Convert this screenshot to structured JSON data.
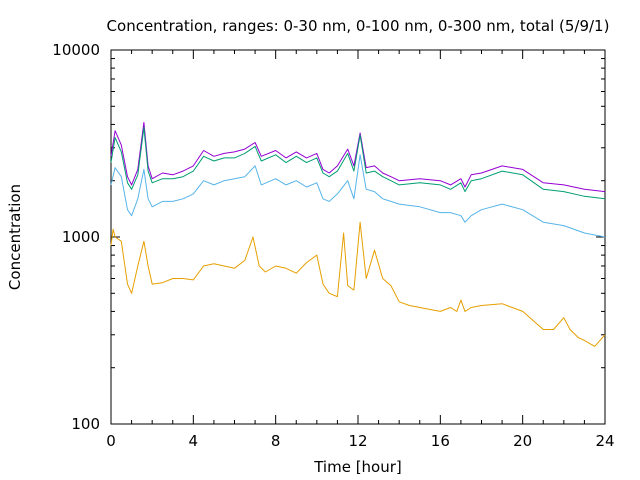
{
  "chart_data": {
    "type": "line",
    "title": "Concentration, ranges: 0-30 nm, 0-100 nm, 0-300 nm, total (5/9/1)",
    "xlabel": "Time [hour]",
    "ylabel": "Concentration",
    "y_scale": "log",
    "xlim": [
      0,
      24
    ],
    "ylim": [
      100,
      10000
    ],
    "x_ticks": [
      0,
      4,
      8,
      12,
      16,
      20,
      24
    ],
    "y_ticks": [
      100,
      1000,
      10000
    ],
    "grid": false,
    "legend": "none",
    "series": [
      {
        "color": "#9400d3",
        "x": [
          0,
          0.2,
          0.5,
          0.8,
          1.0,
          1.3,
          1.6,
          1.8,
          2.0,
          2.5,
          3.0,
          3.5,
          4.0,
          4.5,
          5.0,
          5.5,
          6.0,
          6.5,
          7.0,
          7.3,
          8.0,
          8.5,
          9.0,
          9.5,
          10.0,
          10.3,
          10.6,
          11.0,
          11.5,
          11.8,
          12.1,
          12.4,
          12.8,
          13.2,
          13.6,
          14.0,
          15.0,
          16.0,
          16.5,
          17.0,
          17.2,
          17.5,
          18.0,
          19.0,
          20.0,
          21.0,
          22.0,
          23.0,
          24.0
        ],
        "y": [
          2700,
          3700,
          3100,
          2100,
          1900,
          2300,
          4100,
          2400,
          2050,
          2200,
          2150,
          2250,
          2400,
          2900,
          2700,
          2800,
          2850,
          2950,
          3200,
          2700,
          2900,
          2650,
          2850,
          2650,
          2800,
          2300,
          2200,
          2400,
          2950,
          2400,
          3600,
          2350,
          2400,
          2200,
          2100,
          2000,
          2050,
          2000,
          1900,
          2050,
          1850,
          2150,
          2200,
          2400,
          2300,
          1950,
          1900,
          1800,
          1750
        ]
      },
      {
        "color": "#009e73",
        "x": [
          0,
          0.2,
          0.5,
          0.8,
          1.0,
          1.3,
          1.6,
          1.8,
          2.0,
          2.5,
          3.0,
          3.5,
          4.0,
          4.5,
          5.0,
          5.5,
          6.0,
          6.5,
          7.0,
          7.3,
          8.0,
          8.5,
          9.0,
          9.5,
          10.0,
          10.3,
          10.6,
          11.0,
          11.5,
          11.8,
          12.1,
          12.4,
          12.8,
          13.2,
          13.6,
          14.0,
          15.0,
          16.0,
          16.5,
          17.0,
          17.2,
          17.5,
          18.0,
          19.0,
          20.0,
          21.0,
          22.0,
          23.0,
          24.0
        ],
        "y": [
          2500,
          3400,
          2850,
          1950,
          1800,
          2150,
          3850,
          2250,
          1950,
          2050,
          2050,
          2100,
          2250,
          2700,
          2550,
          2650,
          2650,
          2800,
          3050,
          2550,
          2750,
          2500,
          2700,
          2500,
          2650,
          2200,
          2100,
          2250,
          2800,
          2250,
          3500,
          2200,
          2250,
          2100,
          2000,
          1900,
          1950,
          1900,
          1800,
          1950,
          1750,
          2000,
          2050,
          2250,
          2150,
          1800,
          1750,
          1650,
          1600
        ]
      },
      {
        "color": "#56b4e9",
        "x": [
          0,
          0.2,
          0.5,
          0.8,
          1.0,
          1.3,
          1.6,
          1.8,
          2.0,
          2.5,
          3.0,
          3.5,
          4.0,
          4.5,
          5.0,
          5.5,
          6.0,
          6.5,
          7.0,
          7.3,
          8.0,
          8.5,
          9.0,
          9.5,
          10.0,
          10.3,
          10.6,
          11.0,
          11.5,
          11.8,
          12.1,
          12.4,
          12.8,
          13.2,
          13.6,
          14.0,
          15.0,
          16.0,
          16.5,
          17.0,
          17.2,
          17.5,
          18.0,
          19.0,
          20.0,
          21.0,
          22.0,
          23.0,
          24.0
        ],
        "y": [
          1900,
          2350,
          2100,
          1400,
          1300,
          1600,
          2300,
          1600,
          1450,
          1550,
          1550,
          1600,
          1700,
          2000,
          1900,
          2000,
          2050,
          2100,
          2400,
          1900,
          2050,
          1900,
          2000,
          1850,
          1950,
          1600,
          1550,
          1700,
          2000,
          1600,
          2750,
          1800,
          1750,
          1600,
          1550,
          1500,
          1450,
          1350,
          1350,
          1300,
          1200,
          1300,
          1400,
          1500,
          1400,
          1200,
          1150,
          1050,
          1000
        ]
      },
      {
        "color": "#e69f00",
        "x": [
          0,
          0.1,
          0.2,
          0.5,
          0.8,
          1.0,
          1.3,
          1.6,
          1.8,
          2.0,
          2.5,
          3.0,
          3.5,
          4.0,
          4.5,
          5.0,
          5.5,
          6.0,
          6.5,
          6.9,
          7.2,
          7.5,
          8.0,
          8.5,
          9.0,
          9.5,
          10.0,
          10.3,
          10.6,
          11.0,
          11.3,
          11.5,
          11.8,
          12.1,
          12.4,
          12.8,
          13.2,
          13.6,
          14.0,
          14.5,
          15.0,
          16.0,
          16.5,
          16.8,
          17.0,
          17.2,
          17.5,
          18.0,
          19.0,
          20.0,
          21.0,
          21.5,
          22.0,
          22.3,
          22.7,
          23.0,
          23.5,
          24.0
        ],
        "y": [
          900,
          1100,
          1000,
          950,
          560,
          500,
          700,
          950,
          700,
          560,
          570,
          600,
          600,
          590,
          700,
          720,
          700,
          680,
          750,
          1000,
          700,
          650,
          700,
          680,
          640,
          730,
          800,
          560,
          500,
          480,
          1050,
          550,
          520,
          1200,
          600,
          850,
          600,
          550,
          450,
          430,
          420,
          400,
          420,
          400,
          460,
          400,
          420,
          430,
          440,
          400,
          320,
          320,
          370,
          320,
          290,
          280,
          260,
          300
        ]
      }
    ]
  }
}
